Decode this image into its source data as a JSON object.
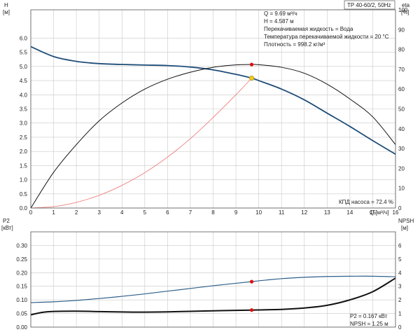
{
  "title_box": "TP 40-60/2, 50Hz",
  "info": {
    "lines": [
      "Q = 9.69 м³/ч",
      "H = 4.587 м",
      "Перекачиваемая жидкость = Вода",
      "Температура перекачиваемой жидкости = 20 °C",
      "Плотность = 998.2 кг/м³"
    ]
  },
  "annotations": {
    "efficiency": "КПД насоса = 72.4 %",
    "p2": "P2 = 0.167 кВт",
    "npsh": "NPSH = 1.25 м"
  },
  "chart_data": [
    {
      "type": "line",
      "title": "",
      "xlabel": "Q [м³/ч]",
      "ylabel": "H\n[м]",
      "y2label": "eta\n[%]",
      "xlim": [
        0,
        16
      ],
      "ylim": [
        0,
        7
      ],
      "y2lim": [
        0,
        100
      ],
      "xticks": [
        0,
        1,
        2,
        3,
        4,
        5,
        6,
        7,
        8,
        9,
        10,
        11,
        12,
        13,
        14,
        15,
        16
      ],
      "yticks": [
        0.0,
        0.5,
        1.0,
        1.5,
        2.0,
        2.5,
        3.0,
        3.5,
        4.0,
        4.5,
        5.0,
        5.5,
        6.0
      ],
      "y2ticks": [
        0,
        10,
        20,
        30,
        40,
        50,
        60,
        70,
        80,
        90,
        100
      ],
      "grid": true,
      "series": [
        {
          "name": "",
          "axis": "y",
          "color": "#1f4e79",
          "x": [
            0,
            1,
            2,
            3,
            4,
            5,
            6,
            7,
            8,
            9,
            9.69,
            10,
            11,
            12,
            13,
            14,
            15,
            16
          ],
          "y": [
            5.7,
            5.35,
            5.18,
            5.1,
            5.07,
            5.05,
            5.03,
            4.98,
            4.88,
            4.72,
            4.587,
            4.5,
            4.2,
            3.82,
            3.35,
            2.88,
            2.38,
            1.9
          ]
        },
        {
          "name": "",
          "axis": "y2",
          "color": "#111111",
          "x": [
            0,
            1,
            2,
            3,
            4,
            5,
            6,
            7,
            8,
            9,
            9.69,
            10,
            11,
            12,
            13,
            14,
            15,
            16
          ],
          "y": [
            0,
            18,
            32,
            44,
            53,
            60,
            65,
            68.5,
            71,
            72.2,
            72.4,
            72.3,
            71,
            68,
            62.5,
            55,
            46,
            32
          ]
        },
        {
          "name": "",
          "axis": "y",
          "color": "#f08080",
          "x": [
            0,
            1,
            2,
            3,
            4,
            5,
            6,
            7,
            8,
            9,
            9.69
          ],
          "y": [
            0,
            0.05,
            0.2,
            0.45,
            0.8,
            1.25,
            1.8,
            2.45,
            3.2,
            4.0,
            4.587
          ]
        }
      ],
      "points": [
        {
          "x": 9.69,
          "y": 4.587,
          "axis": "y",
          "color": "#f2c81e"
        },
        {
          "x": 9.69,
          "y": 72.4,
          "axis": "y2",
          "color": "#e01010"
        }
      ]
    },
    {
      "type": "line",
      "title": "",
      "xlabel": "",
      "ylabel": "P2\n[кВт]",
      "y2label": "NPSH\n[м]",
      "xlim": [
        0,
        16
      ],
      "ylim": [
        0,
        0.35
      ],
      "y2lim": [
        0,
        7
      ],
      "yticks": [
        0.0,
        0.05,
        0.1,
        0.15,
        0.2,
        0.25,
        0.3
      ],
      "y2ticks": [
        0,
        1,
        2,
        3,
        4,
        5,
        6
      ],
      "grid": true,
      "series": [
        {
          "name": "",
          "axis": "y",
          "color": "#2e5f8a",
          "x": [
            0,
            1,
            2,
            3,
            4,
            5,
            6,
            7,
            8,
            9,
            9.69,
            10,
            11,
            12,
            13,
            14,
            15,
            16
          ],
          "y": [
            0.09,
            0.093,
            0.098,
            0.105,
            0.113,
            0.122,
            0.132,
            0.142,
            0.152,
            0.161,
            0.167,
            0.17,
            0.178,
            0.183,
            0.186,
            0.187,
            0.187,
            0.185
          ]
        },
        {
          "name": "",
          "axis": "y2",
          "color": "#111111",
          "x": [
            0,
            0.5,
            1,
            2,
            3,
            4,
            5,
            6,
            7,
            8,
            9,
            9.69,
            10,
            11,
            12,
            13,
            14,
            15,
            16
          ],
          "y": [
            0.9,
            1.08,
            1.15,
            1.17,
            1.14,
            1.11,
            1.1,
            1.12,
            1.16,
            1.2,
            1.23,
            1.25,
            1.26,
            1.3,
            1.4,
            1.6,
            2.0,
            2.6,
            3.6
          ]
        }
      ],
      "points": [
        {
          "x": 9.69,
          "y": 0.167,
          "axis": "y",
          "color": "#e01010"
        },
        {
          "x": 9.69,
          "y": 1.25,
          "axis": "y2",
          "color": "#e01010"
        }
      ]
    }
  ]
}
